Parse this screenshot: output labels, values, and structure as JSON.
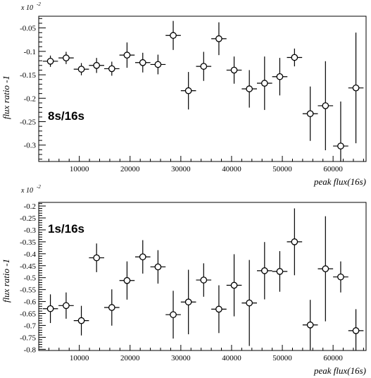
{
  "chart_data": [
    {
      "type": "scatter",
      "title": "",
      "panel_label": "8s/16s",
      "xlabel": "peak flux(16s)",
      "ylabel": "flux ratio -1",
      "y_scale_label": "x 10",
      "y_scale_exponent": "-2",
      "xlim": [
        2000,
        66500
      ],
      "ylim": [
        -0.335,
        -0.025
      ],
      "xticks": [
        10000,
        20000,
        30000,
        40000,
        50000,
        60000
      ],
      "xtick_labels": [
        "10000",
        "20000",
        "30000",
        "40000",
        "50000",
        "60000"
      ],
      "yticks": [
        -0.05,
        -0.1,
        -0.15,
        -0.2,
        -0.25,
        -0.3
      ],
      "ytick_labels": [
        "-0.05",
        "-0.1",
        "-0.15",
        "-0.2",
        "-0.25",
        "-0.3"
      ],
      "grid": false,
      "points": [
        {
          "x": 4300,
          "y": -0.121,
          "xerr": 1500,
          "yerr": 0.012
        },
        {
          "x": 7400,
          "y": -0.114,
          "xerr": 1500,
          "yerr": 0.013
        },
        {
          "x": 10400,
          "y": -0.138,
          "xerr": 1500,
          "yerr": 0.013
        },
        {
          "x": 13400,
          "y": -0.13,
          "xerr": 1500,
          "yerr": 0.016
        },
        {
          "x": 16400,
          "y": -0.137,
          "xerr": 1500,
          "yerr": 0.015
        },
        {
          "x": 19400,
          "y": -0.108,
          "xerr": 1500,
          "yerr": 0.027
        },
        {
          "x": 22500,
          "y": -0.124,
          "xerr": 1500,
          "yerr": 0.021
        },
        {
          "x": 25500,
          "y": -0.128,
          "xerr": 1500,
          "yerr": 0.021
        },
        {
          "x": 28500,
          "y": -0.066,
          "xerr": 1500,
          "yerr": 0.031
        },
        {
          "x": 31500,
          "y": -0.184,
          "xerr": 1500,
          "yerr": 0.04
        },
        {
          "x": 34500,
          "y": -0.132,
          "xerr": 1500,
          "yerr": 0.031
        },
        {
          "x": 37500,
          "y": -0.073,
          "xerr": 1500,
          "yerr": 0.035
        },
        {
          "x": 40500,
          "y": -0.14,
          "xerr": 1500,
          "yerr": 0.029
        },
        {
          "x": 43500,
          "y": -0.18,
          "xerr": 1500,
          "yerr": 0.04
        },
        {
          "x": 46500,
          "y": -0.168,
          "xerr": 1500,
          "yerr": 0.057
        },
        {
          "x": 49500,
          "y": -0.154,
          "xerr": 1500,
          "yerr": 0.04
        },
        {
          "x": 52400,
          "y": -0.113,
          "xerr": 1500,
          "yerr": 0.019
        },
        {
          "x": 55500,
          "y": -0.233,
          "xerr": 1500,
          "yerr": 0.058
        },
        {
          "x": 58500,
          "y": -0.216,
          "xerr": 1500,
          "yerr": 0.095
        },
        {
          "x": 61500,
          "y": -0.302,
          "xerr": 1500,
          "yerr": 0.095
        },
        {
          "x": 64500,
          "y": -0.178,
          "xerr": 1500,
          "yerr": 0.118
        }
      ]
    },
    {
      "type": "scatter",
      "title": "",
      "panel_label": "1s/16s",
      "xlabel": "peak flux(16s)",
      "ylabel": "flux ratio -1",
      "y_scale_label": "x 10",
      "y_scale_exponent": "-2",
      "xlim": [
        2000,
        66500
      ],
      "ylim": [
        -0.805,
        -0.185
      ],
      "xticks": [
        10000,
        20000,
        30000,
        40000,
        50000,
        60000
      ],
      "xtick_labels": [
        "10000",
        "20000",
        "30000",
        "40000",
        "50000",
        "60000"
      ],
      "yticks": [
        -0.2,
        -0.25,
        -0.3,
        -0.35,
        -0.4,
        -0.45,
        -0.5,
        -0.55,
        -0.6,
        -0.65,
        -0.7,
        -0.75,
        -0.8
      ],
      "ytick_labels": [
        "-0.2",
        "-0.25",
        "-0.3",
        "-0.35",
        "-0.4",
        "-0.45",
        "-0.5",
        "-0.55",
        "-0.6",
        "-0.65",
        "-0.7",
        "-0.75",
        "-0.8"
      ],
      "grid": false,
      "points": [
        {
          "x": 4300,
          "y": -0.63,
          "xerr": 1500,
          "yerr": 0.06
        },
        {
          "x": 7400,
          "y": -0.617,
          "xerr": 1500,
          "yerr": 0.055
        },
        {
          "x": 10400,
          "y": -0.68,
          "xerr": 1500,
          "yerr": 0.062
        },
        {
          "x": 13400,
          "y": -0.417,
          "xerr": 1500,
          "yerr": 0.06
        },
        {
          "x": 16400,
          "y": -0.625,
          "xerr": 1500,
          "yerr": 0.076
        },
        {
          "x": 19400,
          "y": -0.512,
          "xerr": 1500,
          "yerr": 0.08
        },
        {
          "x": 22500,
          "y": -0.413,
          "xerr": 1500,
          "yerr": 0.07
        },
        {
          "x": 25500,
          "y": -0.455,
          "xerr": 1500,
          "yerr": 0.07
        },
        {
          "x": 28500,
          "y": -0.655,
          "xerr": 1500,
          "yerr": 0.1
        },
        {
          "x": 31500,
          "y": -0.602,
          "xerr": 1500,
          "yerr": 0.135
        },
        {
          "x": 34500,
          "y": -0.51,
          "xerr": 1500,
          "yerr": 0.07
        },
        {
          "x": 37500,
          "y": -0.632,
          "xerr": 1500,
          "yerr": 0.1
        },
        {
          "x": 40500,
          "y": -0.532,
          "xerr": 1500,
          "yerr": 0.13
        },
        {
          "x": 43500,
          "y": -0.606,
          "xerr": 1500,
          "yerr": 0.18
        },
        {
          "x": 46500,
          "y": -0.471,
          "xerr": 1500,
          "yerr": 0.12
        },
        {
          "x": 49500,
          "y": -0.474,
          "xerr": 1500,
          "yerr": 0.085
        },
        {
          "x": 52400,
          "y": -0.35,
          "xerr": 1500,
          "yerr": 0.14
        },
        {
          "x": 55500,
          "y": -0.698,
          "xerr": 1500,
          "yerr": 0.105
        },
        {
          "x": 58500,
          "y": -0.463,
          "xerr": 1500,
          "yerr": 0.22
        },
        {
          "x": 61500,
          "y": -0.497,
          "xerr": 1500,
          "yerr": 0.065
        },
        {
          "x": 64500,
          "y": -0.722,
          "xerr": 1500,
          "yerr": 0.09
        }
      ]
    }
  ]
}
